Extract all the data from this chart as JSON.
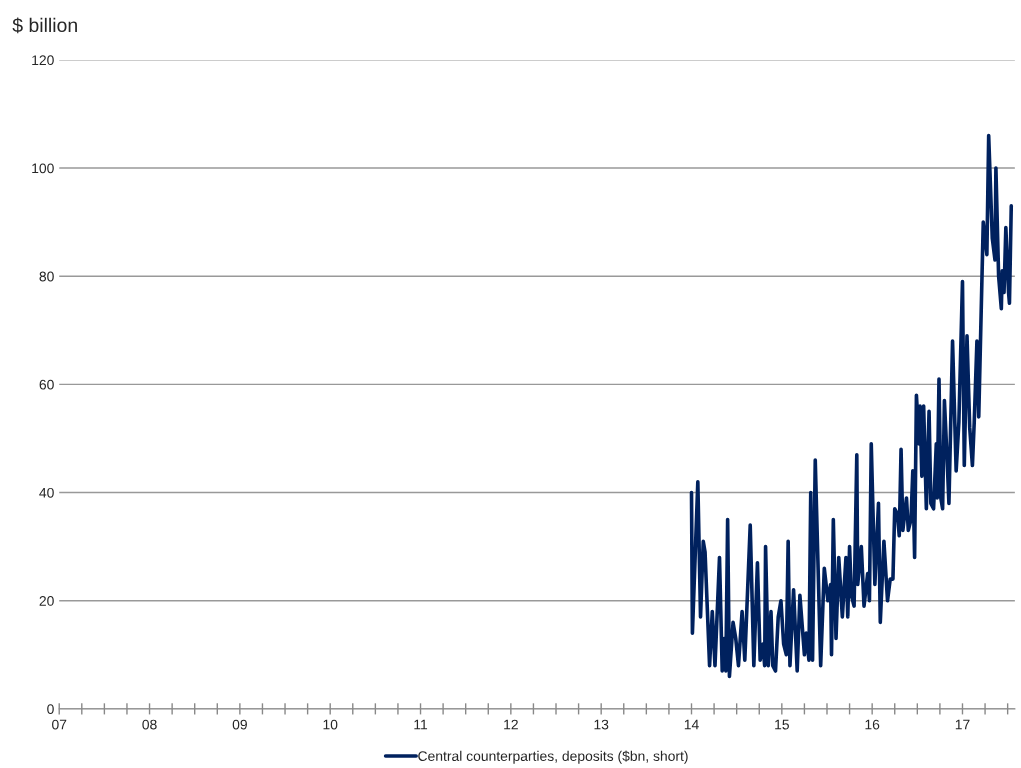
{
  "chart_data": {
    "type": "line",
    "ylabel": "$ billion",
    "legend": "bottom",
    "grid": "y",
    "line_style": "solid",
    "xlim": [
      2007,
      2017.58
    ],
    "ylim": [
      0,
      120
    ],
    "yticks": [
      0,
      20,
      40,
      60,
      80,
      100,
      120
    ],
    "xticks": [
      {
        "value": 2007,
        "label": "07"
      },
      {
        "value": 2007.25,
        "label": null
      },
      {
        "value": 2007.5,
        "label": null
      },
      {
        "value": 2007.75,
        "label": null
      },
      {
        "value": 2008,
        "label": "08"
      },
      {
        "value": 2008.25,
        "label": null
      },
      {
        "value": 2008.5,
        "label": null
      },
      {
        "value": 2008.75,
        "label": null
      },
      {
        "value": 2009,
        "label": "09"
      },
      {
        "value": 2009.25,
        "label": null
      },
      {
        "value": 2009.5,
        "label": null
      },
      {
        "value": 2009.75,
        "label": null
      },
      {
        "value": 2010,
        "label": "10"
      },
      {
        "value": 2010.25,
        "label": null
      },
      {
        "value": 2010.5,
        "label": null
      },
      {
        "value": 2010.75,
        "label": null
      },
      {
        "value": 2011,
        "label": "11"
      },
      {
        "value": 2011.25,
        "label": null
      },
      {
        "value": 2011.5,
        "label": null
      },
      {
        "value": 2011.75,
        "label": null
      },
      {
        "value": 2012,
        "label": "12"
      },
      {
        "value": 2012.25,
        "label": null
      },
      {
        "value": 2012.5,
        "label": null
      },
      {
        "value": 2012.75,
        "label": null
      },
      {
        "value": 2013,
        "label": "13"
      },
      {
        "value": 2013.25,
        "label": null
      },
      {
        "value": 2013.5,
        "label": null
      },
      {
        "value": 2013.75,
        "label": null
      },
      {
        "value": 2014,
        "label": "14"
      },
      {
        "value": 2014.25,
        "label": null
      },
      {
        "value": 2014.5,
        "label": null
      },
      {
        "value": 2014.75,
        "label": null
      },
      {
        "value": 2015,
        "label": "15"
      },
      {
        "value": 2015.25,
        "label": null
      },
      {
        "value": 2015.5,
        "label": null
      },
      {
        "value": 2015.75,
        "label": null
      },
      {
        "value": 2016,
        "label": "16"
      },
      {
        "value": 2016.25,
        "label": null
      },
      {
        "value": 2016.5,
        "label": null
      },
      {
        "value": 2016.75,
        "label": null
      },
      {
        "value": 2017,
        "label": "17"
      },
      {
        "value": 2017.25,
        "label": null
      },
      {
        "value": 2017.5,
        "label": null
      }
    ],
    "series": [
      {
        "name": "Central counterparties, deposits ($bn, short)",
        "color": "#00215e",
        "x": [
          2014.0,
          2014.01,
          2014.07,
          2014.1,
          2014.13,
          2014.15,
          2014.2,
          2014.23,
          2014.26,
          2014.31,
          2014.34,
          2014.36,
          2014.38,
          2014.4,
          2014.42,
          2014.46,
          2014.49,
          2014.52,
          2014.56,
          2014.59,
          2014.65,
          2014.69,
          2014.73,
          2014.76,
          2014.79,
          2014.81,
          2014.82,
          2014.85,
          2014.88,
          2014.9,
          2014.93,
          2014.96,
          2014.99,
          2015.02,
          2015.05,
          2015.07,
          2015.09,
          2015.13,
          2015.17,
          2015.2,
          2015.25,
          2015.27,
          2015.3,
          2015.32,
          2015.34,
          2015.37,
          2015.43,
          2015.47,
          2015.51,
          2015.54,
          2015.55,
          2015.57,
          2015.6,
          2015.63,
          2015.67,
          2015.71,
          2015.73,
          2015.75,
          2015.77,
          2015.8,
          2015.83,
          2015.84,
          2015.88,
          2015.91,
          2015.95,
          2015.97,
          2015.99,
          2016.03,
          2016.07,
          2016.09,
          2016.13,
          2016.17,
          2016.2,
          2016.23,
          2016.25,
          2016.28,
          2016.3,
          2016.32,
          2016.34,
          2016.38,
          2016.4,
          2016.43,
          2016.45,
          2016.47,
          2016.49,
          2016.52,
          2016.53,
          2016.55,
          2016.57,
          2016.6,
          2016.63,
          2016.65,
          2016.68,
          2016.71,
          2016.72,
          2016.74,
          2016.76,
          2016.78,
          2016.8,
          2016.83,
          2016.85,
          2016.89,
          2016.93,
          2016.96,
          2017.0,
          2017.02,
          2017.05,
          2017.08,
          2017.11,
          2017.13,
          2017.16,
          2017.18,
          2017.23,
          2017.27,
          2017.29,
          2017.33,
          2017.36,
          2017.37,
          2017.4,
          2017.43,
          2017.44,
          2017.46,
          2017.48,
          2017.51,
          2017.52,
          2017.54
        ],
        "values": [
          40,
          14,
          42,
          17,
          31,
          29,
          8,
          18,
          8,
          28,
          7,
          13,
          7,
          35,
          6,
          16,
          13,
          8,
          18,
          9,
          34,
          8,
          27,
          9,
          12,
          8,
          30,
          8,
          18,
          8,
          7,
          17,
          20,
          12,
          10,
          31,
          8,
          22,
          7,
          21,
          10,
          14,
          9,
          40,
          9,
          46,
          8,
          26,
          20,
          23,
          10,
          35,
          13,
          28,
          17,
          28,
          17,
          30,
          21,
          19,
          47,
          23,
          30,
          19,
          25,
          20,
          49,
          23,
          38,
          16,
          31,
          20,
          24,
          24,
          37,
          36,
          32,
          48,
          33,
          39,
          33,
          35,
          44,
          28,
          58,
          49,
          56,
          43,
          56,
          37,
          55,
          38,
          37,
          49,
          39,
          61,
          39,
          37,
          57,
          46,
          38,
          68,
          44,
          53,
          79,
          45,
          69,
          52,
          45,
          53,
          68,
          54,
          90,
          84,
          106,
          87,
          83,
          100,
          80,
          74,
          81,
          77,
          89,
          77,
          75,
          93
        ]
      }
    ]
  }
}
